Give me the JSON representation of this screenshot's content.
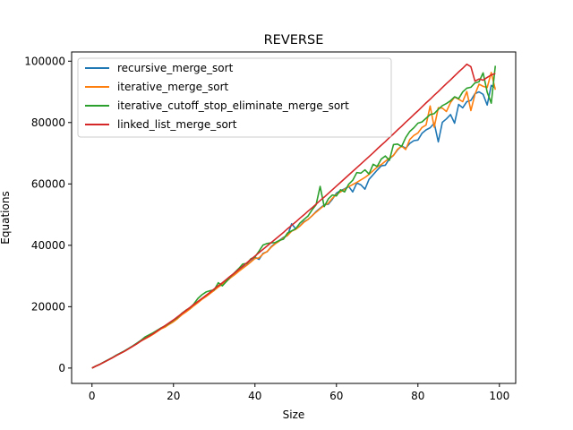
{
  "chart_data": {
    "type": "line",
    "title": "REVERSE",
    "xlabel": "Size",
    "ylabel": "Equations",
    "xlim": [
      -5,
      104
    ],
    "ylim": [
      -5000,
      103000
    ],
    "xticks": [
      0,
      20,
      40,
      60,
      80,
      100
    ],
    "yticks": [
      0,
      20000,
      40000,
      60000,
      80000,
      100000
    ],
    "grid": false,
    "legend_position": "upper-left",
    "x": [
      0,
      1,
      2,
      3,
      4,
      5,
      6,
      7,
      8,
      9,
      10,
      11,
      12,
      13,
      14,
      15,
      16,
      17,
      18,
      19,
      20,
      21,
      22,
      23,
      24,
      25,
      26,
      27,
      28,
      29,
      30,
      31,
      32,
      33,
      34,
      35,
      36,
      37,
      38,
      39,
      40,
      41,
      42,
      43,
      44,
      45,
      46,
      47,
      48,
      49,
      50,
      51,
      52,
      53,
      54,
      55,
      56,
      57,
      58,
      59,
      60,
      61,
      62,
      63,
      64,
      65,
      66,
      67,
      68,
      69,
      70,
      71,
      72,
      73,
      74,
      75,
      76,
      77,
      78,
      79,
      80,
      81,
      82,
      83,
      84,
      85,
      86,
      87,
      88,
      89,
      90,
      91,
      92,
      93,
      94,
      95,
      96,
      97,
      98,
      99
    ],
    "series": [
      {
        "name": "recursive_merge_sort",
        "color": "#1f77b4",
        "values": [
          0,
          700,
          1300,
          2000,
          2700,
          3400,
          4200,
          4900,
          5600,
          6400,
          7200,
          8100,
          9000,
          9700,
          10400,
          11200,
          12100,
          13100,
          13600,
          14500,
          15300,
          16300,
          17500,
          18400,
          19400,
          20500,
          21500,
          22600,
          23400,
          24500,
          25500,
          26600,
          27500,
          28400,
          29600,
          30500,
          31700,
          32700,
          33600,
          34700,
          36100,
          35400,
          37400,
          37900,
          39600,
          40700,
          41600,
          42600,
          43200,
          47000,
          45400,
          46300,
          47700,
          48400,
          49600,
          51000,
          52100,
          53200,
          53400,
          55000,
          57000,
          57800,
          58400,
          59200,
          57400,
          60300,
          59700,
          58300,
          61500,
          63000,
          64500,
          65900,
          66100,
          68200,
          69300,
          71100,
          72400,
          71600,
          73200,
          74100,
          74300,
          76500,
          77600,
          78300,
          79800,
          73700,
          80100,
          81200,
          82600,
          79800,
          85900,
          84800,
          86800,
          87200,
          89400,
          90000,
          89200,
          85700,
          92100,
          91300
        ]
      },
      {
        "name": "iterative_merge_sort",
        "color": "#ff7f0e",
        "values": [
          0,
          650,
          1250,
          1950,
          2650,
          3350,
          4100,
          4800,
          5500,
          6300,
          7100,
          7900,
          8800,
          9500,
          10200,
          11000,
          11900,
          12800,
          13400,
          14300,
          15100,
          16100,
          17300,
          18200,
          19200,
          20300,
          21300,
          22400,
          23300,
          24300,
          25300,
          26400,
          27300,
          28300,
          29400,
          30400,
          31500,
          32500,
          33500,
          34600,
          35700,
          35900,
          37200,
          38000,
          39400,
          40500,
          41400,
          42400,
          43200,
          44600,
          45200,
          46200,
          47500,
          48400,
          49600,
          50800,
          51900,
          53000,
          53700,
          55300,
          56600,
          57400,
          58200,
          59100,
          59800,
          60500,
          61300,
          62100,
          63100,
          64300,
          65500,
          66300,
          67400,
          68400,
          69300,
          71300,
          72300,
          71200,
          74500,
          75800,
          76600,
          78400,
          79200,
          85400,
          78500,
          84800,
          84700,
          83600,
          86500,
          88300,
          87600,
          86800,
          90100,
          83900,
          89200,
          92500,
          91800,
          91400,
          96300,
          90700
        ]
      },
      {
        "name": "iterative_cutoff_stop_eliminate_merge_sort",
        "color": "#2ca02c",
        "values": [
          0,
          700,
          1300,
          2000,
          2700,
          3400,
          4200,
          4900,
          5600,
          6400,
          7200,
          8100,
          9000,
          10100,
          10800,
          11500,
          12300,
          13100,
          13800,
          14600,
          15600,
          16500,
          17800,
          18800,
          19600,
          20900,
          22700,
          23900,
          24800,
          25200,
          25500,
          27800,
          26800,
          28200,
          29800,
          31100,
          32400,
          33900,
          34100,
          35600,
          36200,
          38100,
          40100,
          40600,
          40800,
          40900,
          41600,
          42000,
          44000,
          44700,
          45400,
          47200,
          48400,
          49500,
          51500,
          53200,
          59200,
          52600,
          55100,
          56400,
          56100,
          58100,
          57400,
          59900,
          61200,
          63700,
          63500,
          64600,
          63200,
          66400,
          65700,
          68100,
          69100,
          67700,
          72800,
          73000,
          72200,
          75100,
          77100,
          78300,
          79800,
          80200,
          81400,
          82600,
          82900,
          84300,
          85500,
          86200,
          87100,
          88400,
          87800,
          90000,
          91200,
          91500,
          92900,
          93300,
          96200,
          89900,
          86300,
          98500
        ]
      },
      {
        "name": "linked_list_merge_sort",
        "color": "#d62728",
        "values": [
          0,
          650,
          1250,
          1950,
          2650,
          3350,
          4100,
          4800,
          5500,
          6300,
          7100,
          7900,
          8800,
          9600,
          10400,
          11200,
          12100,
          13000,
          13900,
          14800,
          15700,
          16700,
          17700,
          18700,
          19700,
          20700,
          21700,
          22700,
          23700,
          24700,
          25800,
          26800,
          27800,
          28900,
          30000,
          31000,
          32100,
          33200,
          34300,
          35400,
          36500,
          37600,
          38700,
          39800,
          40900,
          42000,
          43100,
          44200,
          45400,
          46500,
          47600,
          48800,
          49900,
          51100,
          52200,
          53400,
          54600,
          55700,
          56900,
          58100,
          59300,
          60500,
          61700,
          62900,
          64100,
          65300,
          66500,
          67700,
          68900,
          70100,
          71400,
          72600,
          73800,
          75100,
          76300,
          77600,
          78800,
          80100,
          81300,
          82600,
          83800,
          85100,
          86400,
          87600,
          88900,
          90100,
          91400,
          92700,
          93900,
          95200,
          96500,
          97700,
          99000,
          98200,
          93500,
          94200,
          93800,
          94700,
          95500,
          96000
        ]
      }
    ]
  }
}
